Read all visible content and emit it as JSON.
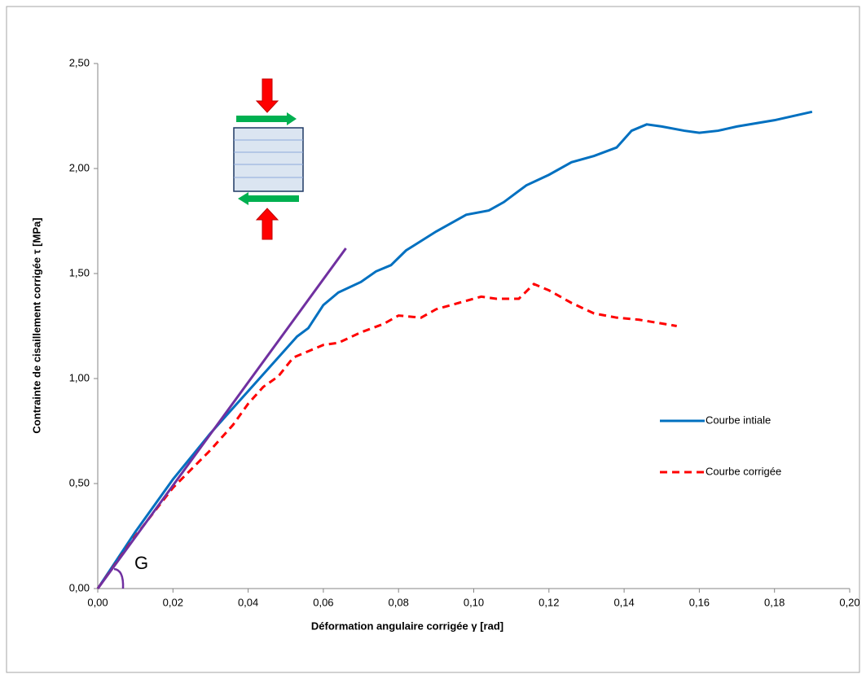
{
  "chart_data": {
    "type": "line",
    "xlabel": "Déformation angulaire corrigée  γ   [rad]",
    "ylabel": "Contrainte de cisaillement corrigée  τ  [MPa]",
    "annotation": "G",
    "xlim": [
      0,
      0.2
    ],
    "ylim": [
      0,
      2.5
    ],
    "xticks": [
      {
        "value": 0,
        "label": "0,00"
      },
      {
        "value": 0.02,
        "label": "0,02"
      },
      {
        "value": 0.04,
        "label": "0,04"
      },
      {
        "value": 0.06,
        "label": "0,06"
      },
      {
        "value": 0.08,
        "label": "0,08"
      },
      {
        "value": 0.1,
        "label": "0,10"
      },
      {
        "value": 0.12,
        "label": "0,12"
      },
      {
        "value": 0.14,
        "label": "0,14"
      },
      {
        "value": 0.16,
        "label": "0,16"
      },
      {
        "value": 0.18,
        "label": "0,18"
      },
      {
        "value": 0.2,
        "label": "0,20"
      }
    ],
    "yticks": [
      {
        "value": 0,
        "label": "0,00"
      },
      {
        "value": 0.5,
        "label": "0,50"
      },
      {
        "value": 1,
        "label": "1,00"
      },
      {
        "value": 1.5,
        "label": "1,50"
      },
      {
        "value": 2,
        "label": "2,00"
      },
      {
        "value": 2.5,
        "label": "2,50"
      }
    ],
    "series": [
      {
        "name": "Courbe intiale",
        "color": "#0070c0",
        "dashed": false,
        "x": [
          0,
          0.01,
          0.02,
          0.03,
          0.04,
          0.05,
          0.053,
          0.056,
          0.06,
          0.064,
          0.07,
          0.074,
          0.078,
          0.082,
          0.09,
          0.098,
          0.104,
          0.108,
          0.114,
          0.12,
          0.126,
          0.132,
          0.138,
          0.142,
          0.146,
          0.15,
          0.156,
          0.16,
          0.165,
          0.17,
          0.18,
          0.19
        ],
        "values": [
          0,
          0.27,
          0.52,
          0.74,
          0.94,
          1.14,
          1.2,
          1.24,
          1.35,
          1.41,
          1.46,
          1.51,
          1.54,
          1.61,
          1.7,
          1.78,
          1.8,
          1.84,
          1.92,
          1.97,
          2.03,
          2.06,
          2.1,
          2.18,
          2.21,
          2.2,
          2.18,
          2.17,
          2.18,
          2.2,
          2.23,
          2.27
        ]
      },
      {
        "name": "Courbe corrigée",
        "color": "#ff0000",
        "dashed": true,
        "x": [
          0,
          0.01,
          0.02,
          0.03,
          0.036,
          0.04,
          0.044,
          0.048,
          0.052,
          0.056,
          0.06,
          0.064,
          0.07,
          0.076,
          0.08,
          0.086,
          0.09,
          0.096,
          0.102,
          0.106,
          0.112,
          0.116,
          0.12,
          0.126,
          0.132,
          0.138,
          0.144,
          0.154
        ],
        "values": [
          0,
          0.25,
          0.48,
          0.66,
          0.78,
          0.88,
          0.96,
          1.01,
          1.1,
          1.13,
          1.16,
          1.17,
          1.22,
          1.26,
          1.3,
          1.29,
          1.33,
          1.36,
          1.39,
          1.38,
          1.38,
          1.45,
          1.42,
          1.36,
          1.31,
          1.29,
          1.28,
          1.25
        ]
      },
      {
        "color": "#7030a0",
        "dashed": false,
        "x": [
          0,
          0.066
        ],
        "values": [
          0,
          1.62
        ]
      }
    ]
  }
}
